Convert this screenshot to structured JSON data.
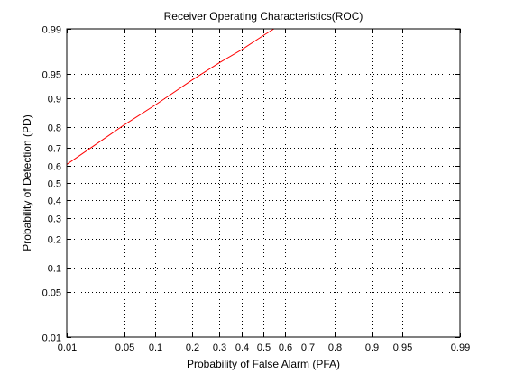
{
  "chart_data": {
    "type": "line",
    "title": "Receiver Operating Characteristics(ROC)",
    "xlabel": "Probability of False Alarm (PFA)",
    "ylabel": "Probability of Detection (PD)",
    "x_scale": "normal-probability",
    "y_scale": "normal-probability",
    "xlim": [
      0.01,
      0.99
    ],
    "ylim": [
      0.01,
      0.99
    ],
    "grid": true,
    "x_ticks": [
      {
        "value": 0.01,
        "label": "0.01"
      },
      {
        "value": 0.05,
        "label": "0.05"
      },
      {
        "value": 0.1,
        "label": "0.1"
      },
      {
        "value": 0.2,
        "label": "0.2"
      },
      {
        "value": 0.3,
        "label": "0.3"
      },
      {
        "value": 0.4,
        "label": "0.4"
      },
      {
        "value": 0.5,
        "label": "0.5"
      },
      {
        "value": 0.6,
        "label": "0.6"
      },
      {
        "value": 0.7,
        "label": "0.7"
      },
      {
        "value": 0.8,
        "label": "0.8"
      },
      {
        "value": 0.9,
        "label": "0.9"
      },
      {
        "value": 0.95,
        "label": "0.95"
      },
      {
        "value": 0.99,
        "label": "0.99"
      }
    ],
    "y_ticks": [
      {
        "value": 0.01,
        "label": "0.01"
      },
      {
        "value": 0.05,
        "label": "0.05"
      },
      {
        "value": 0.1,
        "label": "0.1"
      },
      {
        "value": 0.2,
        "label": "0.2"
      },
      {
        "value": 0.3,
        "label": "0.3"
      },
      {
        "value": 0.4,
        "label": "0.4"
      },
      {
        "value": 0.5,
        "label": "0.5"
      },
      {
        "value": 0.6,
        "label": "0.6"
      },
      {
        "value": 0.7,
        "label": "0.7"
      },
      {
        "value": 0.8,
        "label": "0.8"
      },
      {
        "value": 0.9,
        "label": "0.9"
      },
      {
        "value": 0.95,
        "label": "0.95"
      },
      {
        "value": 0.99,
        "label": "0.99"
      }
    ],
    "series": [
      {
        "color": "#ff0000",
        "x": [
          0.01,
          0.05,
          0.1,
          0.2,
          0.3,
          0.4,
          0.5,
          0.55
        ],
        "y": [
          0.61,
          0.81,
          0.88,
          0.94,
          0.965,
          0.978,
          0.987,
          0.99
        ]
      }
    ]
  }
}
